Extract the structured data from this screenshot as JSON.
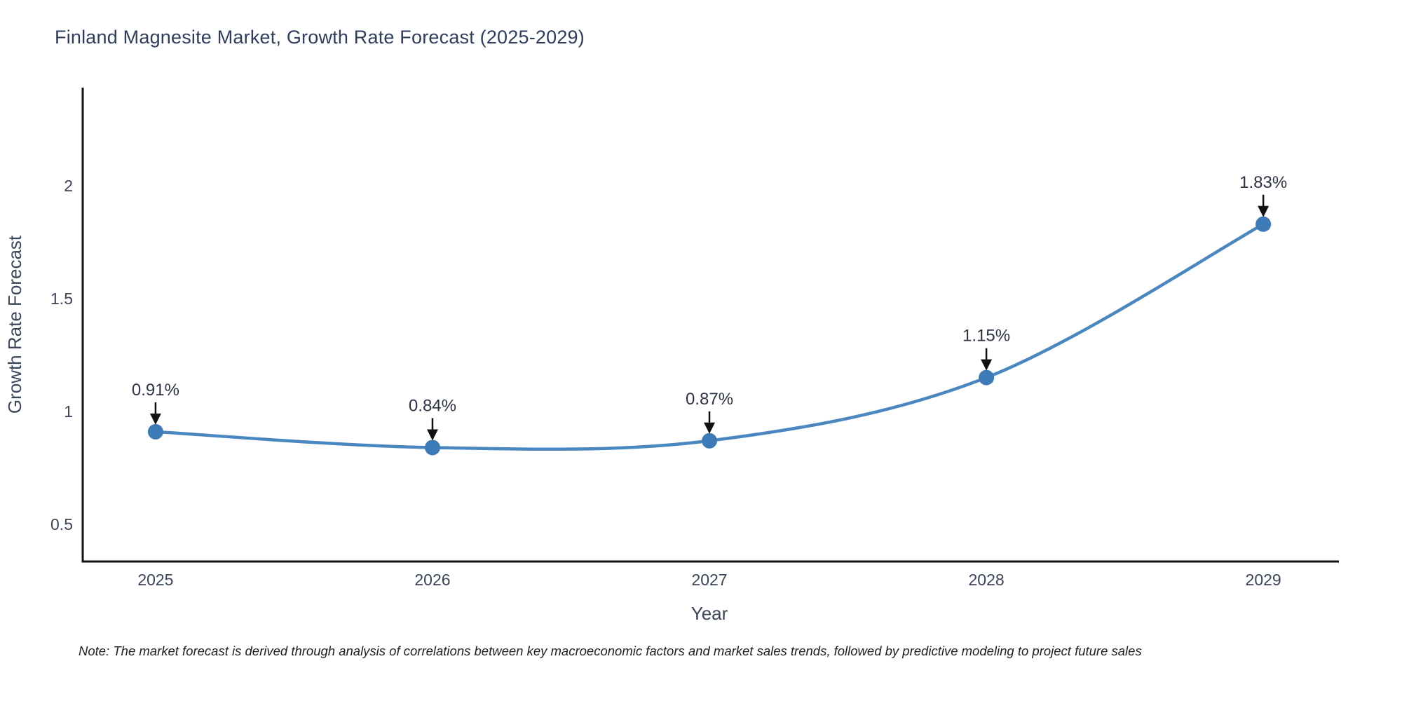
{
  "title": "Finland Magnesite Market, Growth Rate Forecast (2025-2029)",
  "note": "Note: The market forecast is derived through analysis of correlations between key macroeconomic factors and market sales trends, followed by predictive modeling to project future sales",
  "chart_data": {
    "type": "line",
    "title": "Finland Magnesite Market, Growth Rate Forecast (2025-2029)",
    "xlabel": "Year",
    "ylabel": "Growth Rate Forecast",
    "x": [
      2025,
      2026,
      2027,
      2028,
      2029
    ],
    "series": [
      {
        "name": "Growth Rate Forecast",
        "values": [
          0.91,
          0.84,
          0.87,
          1.15,
          1.83
        ],
        "point_labels": [
          "0.91%",
          "0.84%",
          "0.87%",
          "1.15%",
          "1.83%"
        ]
      }
    ],
    "xticks": [
      "2025",
      "2026",
      "2027",
      "2028",
      "2029"
    ],
    "yticks": [
      0.5,
      1,
      1.5,
      2
    ],
    "xlim": [
      2024.737,
      2029.273
    ],
    "ylim": [
      0.335,
      2.435
    ],
    "grid": false,
    "legend": "none",
    "curve": "spline",
    "line_color": "#4a87c1",
    "marker_color": "#3c7bb8",
    "arrow_color": "#111111",
    "axis_color": "#111111"
  }
}
